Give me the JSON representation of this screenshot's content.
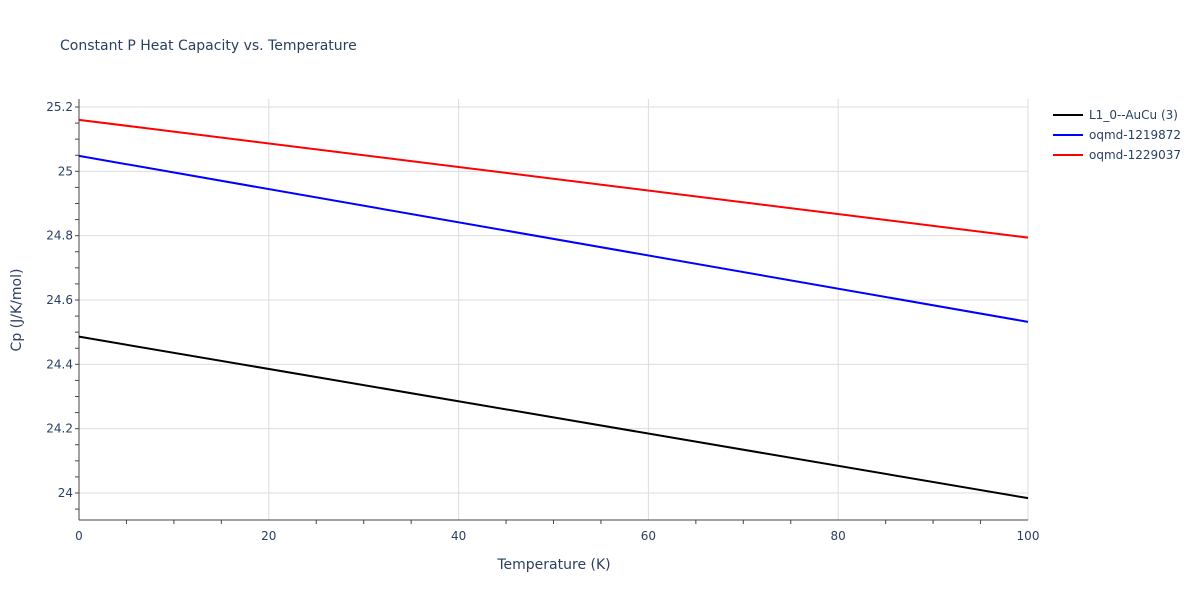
{
  "chart_data": {
    "type": "line",
    "title": "Constant P Heat Capacity vs. Temperature",
    "xlabel": "Temperature (K)",
    "ylabel": "Cp (J/K/mol)",
    "xlim": [
      0,
      100
    ],
    "ylim": [
      23.92,
      25.225
    ],
    "xticks": [
      0,
      20,
      40,
      60,
      80,
      100
    ],
    "yticks": [
      24,
      24.2,
      24.4,
      24.6,
      24.8,
      25,
      25.2
    ],
    "ytick_labels": [
      "24",
      "24.2",
      "24.4",
      "24.6",
      "24.8",
      "25",
      "25.2"
    ],
    "grid": true,
    "legend_position": "top-right",
    "series": [
      {
        "name": "L1_0--AuCu (3)",
        "color": "#000000",
        "x": [
          0,
          100
        ],
        "y": [
          24.486,
          23.984
        ]
      },
      {
        "name": "oqmd-1219872",
        "color": "#0000ff",
        "x": [
          0,
          100
        ],
        "y": [
          25.048,
          24.532
        ]
      },
      {
        "name": "oqmd-1229037",
        "color": "#ff0000",
        "x": [
          0,
          100
        ],
        "y": [
          25.16,
          24.794
        ]
      }
    ]
  }
}
